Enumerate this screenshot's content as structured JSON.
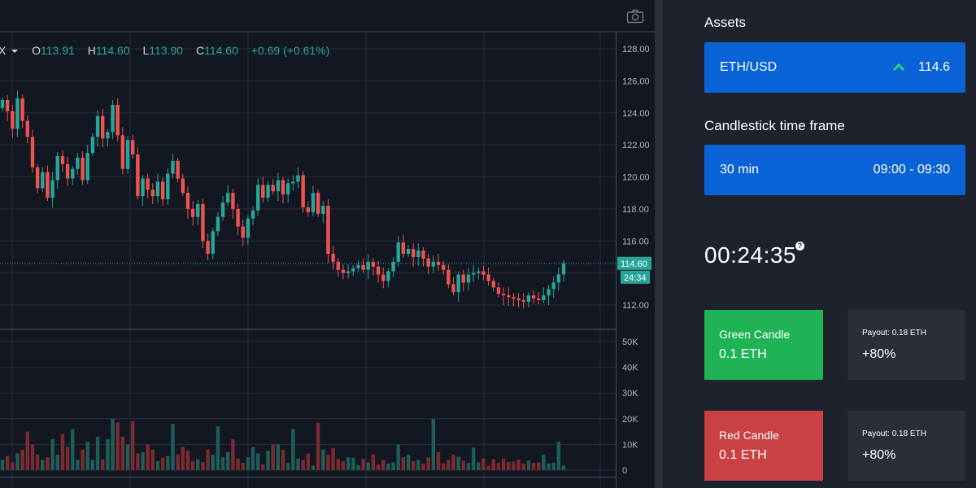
{
  "legend": {
    "symbol_tail": "X",
    "open_key": "O",
    "open": "113.91",
    "high_key": "H",
    "high": "114.60",
    "low_key": "L",
    "low": "113.90",
    "close_key": "C",
    "close": "114.60",
    "change": "+0.69 (+0.61%)"
  },
  "chart_data": {
    "type": "candlestick",
    "price_axis_ticks": [
      "128.00",
      "126.00",
      "124.00",
      "122.00",
      "120.00",
      "118.00",
      "116.00",
      "114.00",
      "112.00"
    ],
    "volume_axis_ticks": [
      "50K",
      "40K",
      "30K",
      "20K",
      "10K",
      "0"
    ],
    "ylim": [
      111.0,
      128.5
    ],
    "volume_ylim": [
      0,
      51000
    ],
    "last_price_label": "114.60",
    "countdown_label": "24:34",
    "last_price": 114.6,
    "up_color": "#26a69a",
    "down_color": "#ef5350",
    "closes": [
      124.8,
      124.1,
      123.0,
      124.9,
      123.5,
      122.5,
      120.6,
      119.3,
      120.3,
      118.7,
      119.8,
      121.3,
      120.8,
      119.9,
      120.5,
      121.2,
      119.8,
      121.5,
      122.5,
      123.8,
      122.4,
      122.8,
      124.5,
      122.6,
      120.5,
      122.3,
      121.4,
      118.8,
      119.9,
      119.2,
      118.8,
      119.7,
      118.6,
      120.2,
      121.0,
      119.9,
      119.0,
      118.0,
      117.5,
      118.3,
      116.0,
      115.2,
      116.6,
      117.5,
      118.4,
      119.0,
      118.0,
      116.9,
      116.2,
      117.4,
      117.9,
      119.5,
      118.7,
      119.5,
      119.1,
      119.8,
      118.9,
      119.6,
      119.7,
      120.1,
      118.1,
      117.8,
      119.0,
      117.7,
      118.2,
      115.2,
      114.7,
      114.2,
      114.0,
      114.1,
      114.3,
      114.5,
      114.2,
      114.7,
      114.4,
      113.9,
      113.5,
      114.1,
      114.7,
      115.9,
      115.2,
      115.5,
      115.0,
      115.4,
      114.9,
      114.4,
      114.7,
      114.5,
      114.2,
      113.3,
      112.8,
      113.9,
      113.4,
      113.9,
      114.0,
      114.1,
      113.9,
      113.5,
      113.1,
      112.7,
      112.6,
      112.5,
      112.4,
      112.3,
      112.2,
      112.6,
      112.4,
      112.3,
      112.6,
      113.0,
      113.4,
      113.91,
      114.6
    ],
    "volumes": [
      4000,
      5500,
      3000,
      6500,
      8000,
      15000,
      10000,
      6000,
      4000,
      5000,
      12000,
      6000,
      14000,
      9000,
      16000,
      4000,
      8000,
      11000,
      4000,
      13000,
      4200,
      12000,
      20000,
      18500,
      13000,
      10000,
      19000,
      6500,
      7000,
      10000,
      8000,
      3500,
      4800,
      5500,
      18000,
      6000,
      9000,
      7500,
      3500,
      4200,
      3200,
      8000,
      6000,
      17000,
      5000,
      7000,
      12000,
      4500,
      2800,
      5000,
      9000,
      6500,
      2200,
      7500,
      10000,
      10000,
      7800,
      2800,
      16000,
      4500,
      4000,
      6500,
      1800,
      18500,
      8000,
      6000,
      8500,
      4300,
      3500,
      5000,
      4800,
      1900,
      4400,
      3000,
      6100,
      2200,
      4000,
      2500,
      3000,
      10000,
      5000,
      6000,
      3500,
      4000,
      2500,
      5000,
      20000,
      7000,
      2600,
      4000,
      6000,
      5200,
      3600,
      2800,
      8800,
      3000,
      4500,
      1700,
      4200,
      2800,
      4500,
      3200,
      3300,
      4100,
      2500,
      3700,
      2800,
      3000,
      6000,
      2600,
      2900,
      11000,
      1800
    ]
  },
  "assets": {
    "title": "Assets",
    "pair": "ETH/USD",
    "price": "114.6"
  },
  "timeframe": {
    "title": "Candlestick time frame",
    "interval": "30 min",
    "range": "09:00 - 09:30"
  },
  "timer": "00:24:35",
  "help_glyph": "?",
  "green_trade": {
    "label": "Green Candle",
    "amount": "0.1 ETH",
    "color": "#1fb356"
  },
  "red_trade": {
    "label": "Red Candle",
    "amount": "0.1 ETH",
    "color": "#c94144"
  },
  "payout_green": {
    "label": "Payout: 0.18 ETH",
    "percent": "+80%"
  },
  "payout_red": {
    "label": "Payout: 0.18 ETH",
    "percent": "+80%"
  },
  "icons": {
    "camera": "camera-icon",
    "dropdown": "caret-down-icon",
    "up": "chevron-up-icon"
  }
}
